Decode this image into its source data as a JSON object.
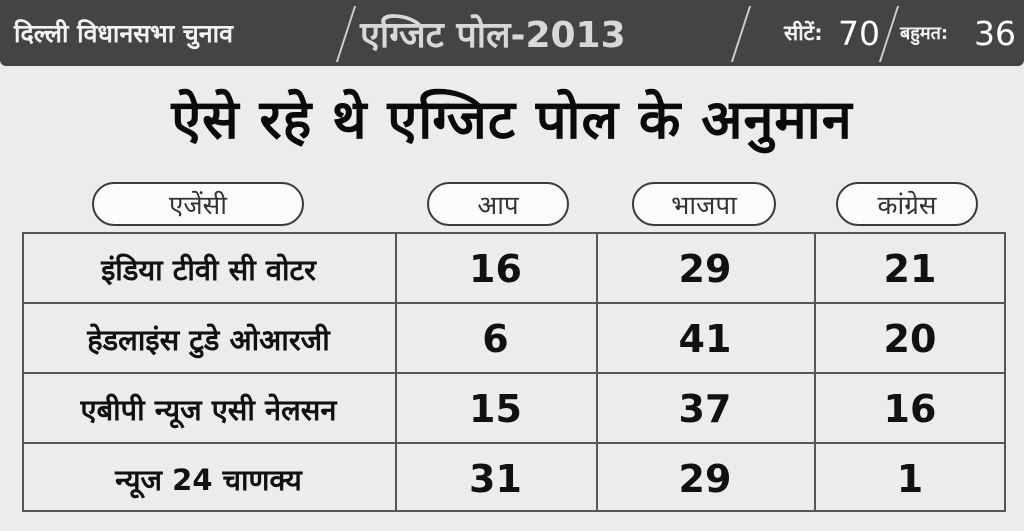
{
  "header": {
    "election": "दिल्ली विधानसभा चुनाव",
    "exit_poll": "एग्जिट पोल-2013",
    "seats_label": "सीटें:",
    "seats_value": "70",
    "majority_label": "बहुमत:",
    "majority_value": "36"
  },
  "headline": "ऐसे रहे थे एग्जिट पोल के अनुमान",
  "table": {
    "columns": [
      "एजेंसी",
      "आप",
      "भाजपा",
      "कांग्रेस"
    ],
    "rows": [
      {
        "agency": "इंडिया टीवी सी वोटर",
        "aap": "16",
        "bjp": "29",
        "congress": "21"
      },
      {
        "agency": "हेडलाइंस टुडे ओआरजी",
        "aap": "6",
        "bjp": "41",
        "congress": "20"
      },
      {
        "agency": "एबीपी न्यूज एसी नेलसन",
        "aap": "15",
        "bjp": "37",
        "congress": "16"
      },
      {
        "agency": "न्यूज 24 चाणक्य",
        "aap": "31",
        "bjp": "29",
        "congress": "1"
      }
    ]
  }
}
